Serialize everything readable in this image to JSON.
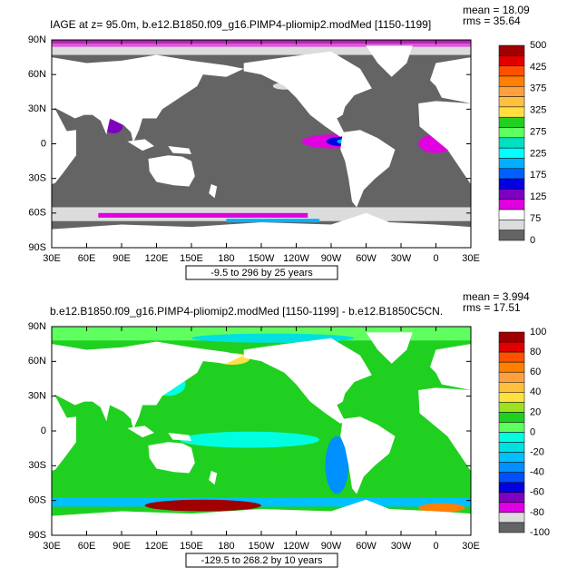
{
  "panels": [
    {
      "title": "IAGE at z=  95.0m, b.e12.B1850.f09_g16.PIMP4-pliomip2.modMed [1150-1199]",
      "mean": "mean = 18.09",
      "rms": "rms = 35.64",
      "lat_ticks": [
        "90N",
        "60N",
        "30N",
        "0",
        "30S",
        "60S",
        "90S"
      ],
      "lon_ticks": [
        "30E",
        "60E",
        "90E",
        "120E",
        "150E",
        "180",
        "150W",
        "120W",
        "90W",
        "60W",
        "30W",
        "0",
        "30E"
      ],
      "range": "-9.5 to 296 by 25 years",
      "colorbar": {
        "labels": [
          "500",
          "425",
          "375",
          "325",
          "275",
          "225",
          "175",
          "125",
          "75",
          "0"
        ],
        "colors": [
          "#a00000",
          "#e00000",
          "#ff5000",
          "#ff8000",
          "#ffa040",
          "#ffc040",
          "#ffe040",
          "#20d020",
          "#60ff60",
          "#00e0c0",
          "#00ffff",
          "#00b0ff",
          "#0060ff",
          "#0000e0",
          "#8000c0",
          "#e000e0",
          "#ffffff",
          "#dcdcdc",
          "#646464"
        ]
      }
    },
    {
      "title": "b.e12.B1850.f09_g16.PIMP4-pliomip2.modMed [1150-1199] - b.e12.B1850C5CN.",
      "mean": "mean = 3.994",
      "rms": "rms = 17.51",
      "lat_ticks": [
        "90N",
        "60N",
        "30N",
        "0",
        "30S",
        "60S",
        "90S"
      ],
      "lon_ticks": [
        "30E",
        "60E",
        "90E",
        "120E",
        "150E",
        "180",
        "150W",
        "120W",
        "90W",
        "60W",
        "30W",
        "0",
        "30E"
      ],
      "range": "-129.5 to 268.2 by 10 years",
      "colorbar": {
        "labels": [
          "100",
          "80",
          "60",
          "40",
          "20",
          "0",
          "-20",
          "-40",
          "-60",
          "-80",
          "-100"
        ],
        "colors": [
          "#a00000",
          "#e00000",
          "#ff5000",
          "#ff8000",
          "#ffa040",
          "#ffc040",
          "#ffe040",
          "#a0e020",
          "#20d020",
          "#60ff60",
          "#00ffe0",
          "#00e0e0",
          "#00c0ff",
          "#0090ff",
          "#0050ff",
          "#0000e0",
          "#8000c0",
          "#e000e0",
          "#dcdcdc",
          "#646464"
        ]
      }
    }
  ]
}
